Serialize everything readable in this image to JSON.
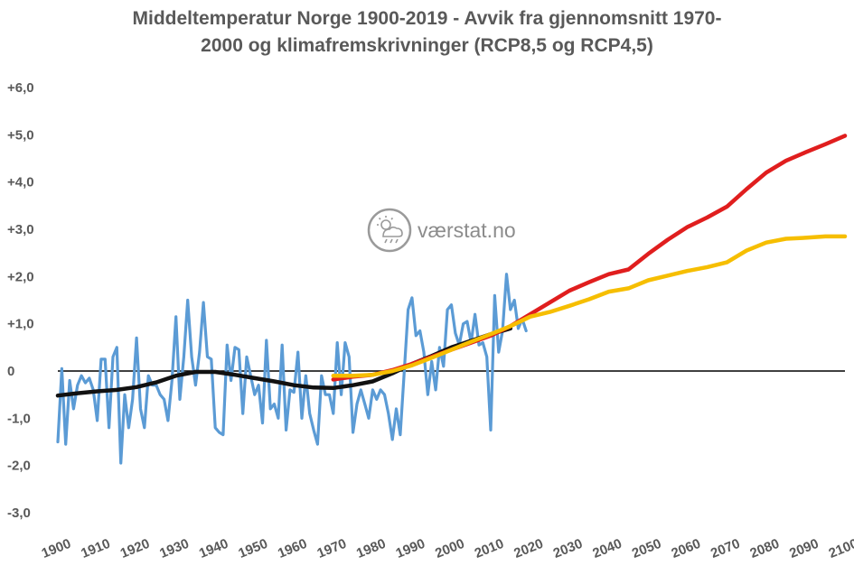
{
  "chart_data": {
    "type": "line",
    "title_line1": "Middeltemperatur Norge 1900-2019 - Avvik fra gjennomsnitt 1970-",
    "title_line2": "2000 og klimafremskrivninger (RCP8,5 og RCP4,5)",
    "watermark": "værstat.no",
    "watermark_icon": "weather-cloud-sun-rain-icon",
    "xlim": [
      1900,
      2100
    ],
    "ylim": [
      -3,
      6
    ],
    "y_ticks": [
      {
        "value": 6,
        "label": "+6,0"
      },
      {
        "value": 5,
        "label": "+5,0"
      },
      {
        "value": 4,
        "label": "+4,0"
      },
      {
        "value": 3,
        "label": "+3,0"
      },
      {
        "value": 2,
        "label": "+2,0"
      },
      {
        "value": 1,
        "label": "+1,0"
      },
      {
        "value": 0,
        "label": "0"
      },
      {
        "value": -1,
        "label": "-1,0"
      },
      {
        "value": -2,
        "label": "-2,0"
      },
      {
        "value": -3,
        "label": "-3,0"
      }
    ],
    "x_ticks": [
      "1900",
      "1910",
      "1920",
      "1930",
      "1940",
      "1950",
      "1960",
      "1970",
      "1980",
      "1990",
      "2000",
      "2010",
      "2020",
      "2030",
      "2040",
      "2050",
      "2060",
      "2070",
      "2080",
      "2090",
      "2100"
    ],
    "grid": false,
    "zero_line": true,
    "series": [
      {
        "color": "#5b9bd5",
        "x": [
          1900,
          1901,
          1902,
          1903,
          1904,
          1905,
          1906,
          1907,
          1908,
          1909,
          1910,
          1911,
          1912,
          1913,
          1914,
          1915,
          1916,
          1917,
          1918,
          1919,
          1920,
          1921,
          1922,
          1923,
          1924,
          1925,
          1926,
          1927,
          1928,
          1929,
          1930,
          1931,
          1932,
          1933,
          1934,
          1935,
          1936,
          1937,
          1938,
          1939,
          1940,
          1941,
          1942,
          1943,
          1944,
          1945,
          1946,
          1947,
          1948,
          1949,
          1950,
          1951,
          1952,
          1953,
          1954,
          1955,
          1956,
          1957,
          1958,
          1959,
          1960,
          1961,
          1962,
          1963,
          1964,
          1965,
          1966,
          1967,
          1968,
          1969,
          1970,
          1971,
          1972,
          1973,
          1974,
          1975,
          1976,
          1977,
          1978,
          1979,
          1980,
          1981,
          1982,
          1983,
          1984,
          1985,
          1986,
          1987,
          1988,
          1989,
          1990,
          1991,
          1992,
          1993,
          1994,
          1995,
          1996,
          1997,
          1998,
          1999,
          2000,
          2001,
          2002,
          2003,
          2004,
          2005,
          2006,
          2007,
          2008,
          2009,
          2010,
          2011,
          2012,
          2013,
          2014,
          2015,
          2016,
          2017,
          2018,
          2019
        ],
        "y": [
          -1.5,
          0.05,
          -1.55,
          -0.2,
          -0.8,
          -0.3,
          -0.1,
          -0.25,
          -0.15,
          -0.4,
          -1.05,
          0.25,
          0.25,
          -1.2,
          0.3,
          0.5,
          -1.95,
          -0.5,
          -1.2,
          -0.6,
          0.7,
          -0.8,
          -1.2,
          -0.1,
          -0.3,
          -0.3,
          -0.5,
          -0.6,
          -1.05,
          -0.2,
          1.15,
          -0.6,
          0.3,
          1.5,
          0.3,
          -0.3,
          0.4,
          1.45,
          0.3,
          0.25,
          -1.2,
          -1.3,
          -1.35,
          0.55,
          -0.2,
          0.5,
          0.45,
          -0.9,
          0.3,
          -0.1,
          -0.5,
          -0.3,
          -1.1,
          0.65,
          -0.8,
          -0.7,
          -1.0,
          0.55,
          -1.25,
          -0.4,
          -0.45,
          0.4,
          -1.0,
          -0.1,
          -0.9,
          -1.25,
          -1.55,
          -0.1,
          -0.5,
          -0.5,
          -0.9,
          0.6,
          -0.5,
          0.6,
          0.3,
          -1.3,
          -0.7,
          -0.4,
          -0.7,
          -1.0,
          -0.4,
          -0.6,
          -0.4,
          -0.5,
          -0.9,
          -1.45,
          -0.8,
          -1.35,
          -0.05,
          1.3,
          1.55,
          0.75,
          0.85,
          0.4,
          -0.5,
          0.2,
          -0.4,
          0.5,
          0.1,
          1.3,
          1.4,
          0.8,
          0.55,
          1.0,
          1.05,
          0.6,
          1.2,
          0.55,
          0.6,
          0.3,
          -1.25,
          1.6,
          0.4,
          0.85,
          2.05,
          1.3,
          1.5,
          0.9,
          1.1,
          0.85
        ]
      },
      {
        "color": "#111111",
        "x": [
          1900,
          1905,
          1910,
          1915,
          1920,
          1925,
          1930,
          1935,
          1940,
          1945,
          1950,
          1955,
          1960,
          1965,
          1970,
          1975,
          1980,
          1985,
          1990,
          1995,
          2000,
          2005,
          2010,
          2015
        ],
        "y": [
          -0.52,
          -0.47,
          -0.43,
          -0.4,
          -0.34,
          -0.24,
          -0.1,
          -0.02,
          -0.02,
          -0.08,
          -0.15,
          -0.22,
          -0.3,
          -0.35,
          -0.36,
          -0.3,
          -0.22,
          -0.05,
          0.15,
          0.32,
          0.5,
          0.64,
          0.78,
          0.9
        ]
      },
      {
        "color": "#e01e1e",
        "x": [
          1970,
          1975,
          1980,
          1985,
          1990,
          1995,
          2000,
          2005,
          2010,
          2015,
          2020,
          2025,
          2030,
          2035,
          2040,
          2045,
          2050,
          2055,
          2060,
          2065,
          2070,
          2075,
          2080,
          2085,
          2090,
          2095,
          2100
        ],
        "y": [
          -0.18,
          -0.12,
          -0.08,
          0.02,
          0.15,
          0.3,
          0.45,
          0.6,
          0.75,
          0.95,
          1.2,
          1.45,
          1.7,
          1.88,
          2.05,
          2.15,
          2.48,
          2.78,
          3.05,
          3.25,
          3.48,
          3.85,
          4.2,
          4.45,
          4.63,
          4.8,
          4.98
        ]
      },
      {
        "color": "#f6be00",
        "x": [
          1970,
          1975,
          1980,
          1985,
          1990,
          1995,
          2000,
          2005,
          2010,
          2015,
          2020,
          2025,
          2030,
          2035,
          2040,
          2045,
          2050,
          2055,
          2060,
          2065,
          2070,
          2075,
          2080,
          2085,
          2090,
          2095,
          2100
        ],
        "y": [
          -0.1,
          -0.1,
          -0.08,
          0.0,
          0.12,
          0.28,
          0.45,
          0.62,
          0.78,
          0.95,
          1.15,
          1.25,
          1.38,
          1.52,
          1.68,
          1.75,
          1.92,
          2.02,
          2.12,
          2.2,
          2.3,
          2.55,
          2.72,
          2.8,
          2.82,
          2.85,
          2.85
        ]
      }
    ]
  }
}
